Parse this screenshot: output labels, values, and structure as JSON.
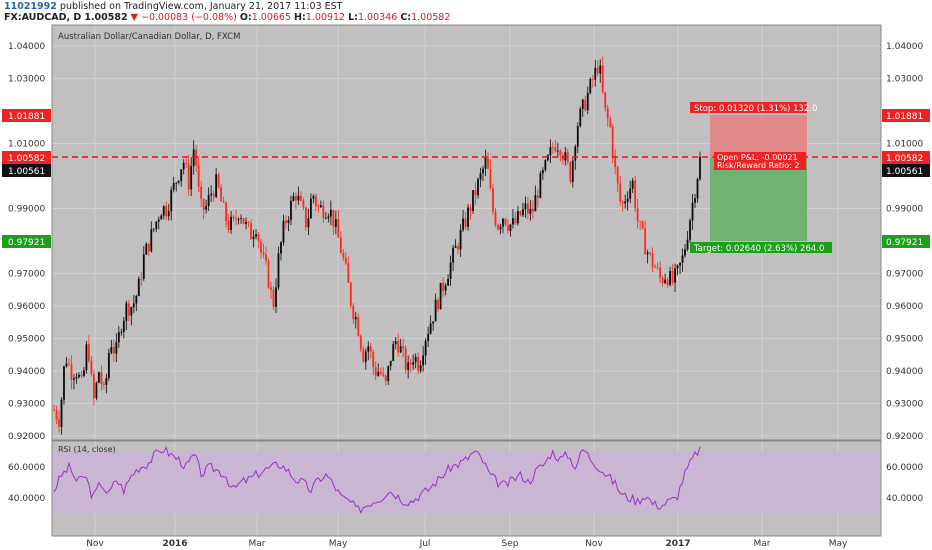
{
  "header": {
    "user_id": "11021992",
    "published": "published on TradingView.com, January 21, 2017 11:03 EST",
    "symbol": "FX:AUDCAD, D",
    "last": "1.00582",
    "change": "−0.00083 (−0.08%)",
    "open_label": "O:",
    "open": "1.00665",
    "high_label": "H:",
    "high": "1.00912",
    "low_label": "L:",
    "low": "1.00346",
    "close_label": "C:",
    "close": "1.00582"
  },
  "chart": {
    "title": "Australian Dollar/Canadian Dollar, D, FXCM",
    "price_ticks": [
      "1.04000",
      "1.03000",
      "1.01000",
      "0.99000",
      "0.97000",
      "0.96000",
      "0.95000",
      "0.94000",
      "0.93000",
      "0.92000"
    ],
    "price_tick_values": [
      1.04,
      1.03,
      1.01,
      0.99,
      0.97,
      0.96,
      0.95,
      0.94,
      0.93,
      0.92
    ],
    "price_labels": {
      "stop": "1.01881",
      "current": "1.00582",
      "prev_close": "1.00561",
      "target": "0.97921"
    },
    "price_label_values": {
      "stop": 1.01881,
      "current": 1.00582,
      "prev_close": 1.00561,
      "target": 0.97921
    },
    "x_labels": [
      "Nov",
      "2016",
      "Mar",
      "May",
      "Jul",
      "Sep",
      "Nov",
      "2017",
      "Mar",
      "May"
    ],
    "position": {
      "stop_text": "Stop: 0.01320 (1.31%) 132.0",
      "pnl_text": "Open P&L: -0.00021",
      "rr_text": "Risk/Reward Ratio: 2",
      "target_text": "Target: 0.02640 (2.63%) 264.0"
    },
    "rsi": {
      "title": "RSI (14, close)",
      "ticks": [
        "60.0000",
        "40.0000"
      ],
      "tick_values": [
        60,
        40
      ],
      "band": [
        30,
        70
      ]
    },
    "series_anchors": [
      [
        0.928,
        0.925
      ],
      [
        0.945,
        0.94
      ],
      [
        0.94,
        0.935
      ],
      [
        0.95,
        0.93
      ],
      [
        0.94,
        0.932
      ],
      [
        0.95,
        0.945
      ],
      [
        0.955,
        0.96
      ],
      [
        0.96,
        0.965
      ],
      [
        0.975,
        0.98
      ],
      [
        0.985,
        0.99
      ],
      [
        0.99,
        0.995
      ],
      [
        1.0,
        1.005
      ],
      [
        0.998,
        1.01
      ],
      [
        0.99,
        0.99
      ],
      [
        0.995,
        0.998
      ],
      [
        0.99,
        0.985
      ],
      [
        0.985,
        0.99
      ],
      [
        0.985,
        0.982
      ],
      [
        0.985,
        0.975
      ],
      [
        0.97,
        0.96
      ],
      [
        0.975,
        0.985
      ],
      [
        0.99,
        0.995
      ],
      [
        0.99,
        0.985
      ],
      [
        0.995,
        0.99
      ],
      [
        0.99,
        0.99
      ],
      [
        0.985,
        0.978
      ],
      [
        0.97,
        0.96
      ],
      [
        0.955,
        0.945
      ],
      [
        0.948,
        0.94
      ],
      [
        0.94,
        0.935
      ],
      [
        0.945,
        0.95
      ],
      [
        0.945,
        0.94
      ],
      [
        0.945,
        0.942
      ],
      [
        0.95,
        0.955
      ],
      [
        0.96,
        0.965
      ],
      [
        0.97,
        0.975
      ],
      [
        0.98,
        0.985
      ],
      [
        0.99,
        0.995
      ],
      [
        1.0,
        1.005
      ],
      [
        0.99,
        0.985
      ],
      [
        0.988,
        0.985
      ],
      [
        0.985,
        0.988
      ],
      [
        0.99,
        0.988
      ],
      [
        0.995,
        1.0
      ],
      [
        1.005,
        1.01
      ],
      [
        1.01,
        1.005
      ],
      [
        1.0,
        1.015
      ],
      [
        1.02,
        1.025
      ],
      [
        1.03,
        1.035
      ],
      [
        1.02,
        1.015
      ],
      [
        1.0,
        0.99
      ],
      [
        0.995,
        0.998
      ],
      [
        0.985,
        0.98
      ],
      [
        0.975,
        0.972
      ],
      [
        0.968,
        0.97
      ],
      [
        0.967,
        0.97
      ],
      [
        0.975,
        0.985
      ],
      [
        0.995,
        1.005
      ]
    ],
    "rsi_anchors": [
      [
        45,
        55
      ],
      [
        60,
        50
      ],
      [
        55,
        40
      ],
      [
        50,
        42
      ],
      [
        52,
        45
      ],
      [
        55,
        60
      ],
      [
        62,
        68
      ],
      [
        72,
        68
      ],
      [
        65,
        60
      ],
      [
        68,
        55
      ],
      [
        60,
        58
      ],
      [
        55,
        45
      ],
      [
        50,
        52
      ],
      [
        55,
        58
      ],
      [
        60,
        62
      ],
      [
        58,
        52
      ],
      [
        50,
        45
      ],
      [
        52,
        55
      ],
      [
        48,
        40
      ],
      [
        38,
        32
      ],
      [
        35,
        38
      ],
      [
        40,
        45
      ],
      [
        42,
        38
      ],
      [
        38,
        42
      ],
      [
        45,
        50
      ],
      [
        55,
        60
      ],
      [
        62,
        65
      ],
      [
        70,
        65
      ],
      [
        55,
        50
      ],
      [
        48,
        52
      ],
      [
        55,
        50
      ],
      [
        58,
        62
      ],
      [
        70,
        65
      ],
      [
        68,
        60
      ],
      [
        72,
        65
      ],
      [
        60,
        55
      ],
      [
        50,
        42
      ],
      [
        40,
        38
      ],
      [
        42,
        36
      ],
      [
        35,
        38
      ],
      [
        40,
        55
      ],
      [
        65,
        72
      ]
    ]
  }
}
